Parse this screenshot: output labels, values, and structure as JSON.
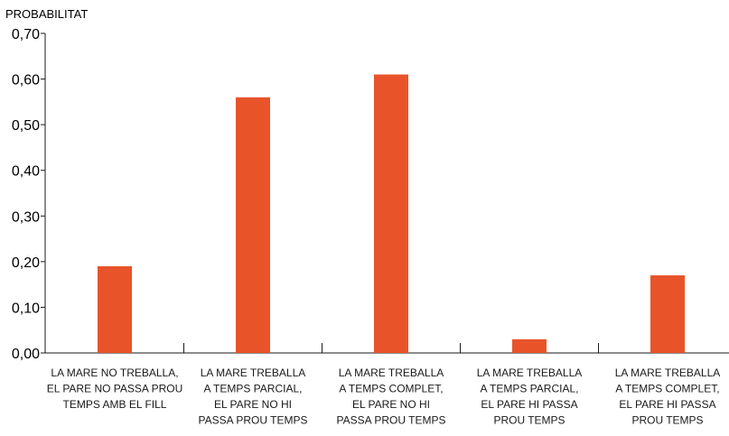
{
  "chart_data": {
    "type": "bar",
    "ylabel": "PROBABILITAT",
    "xlabel": "",
    "title": "",
    "ylim": [
      0,
      0.7
    ],
    "yticks": [
      "0,00",
      "0,10",
      "0,20",
      "0,30",
      "0,40",
      "0,50",
      "0,60",
      "0,70"
    ],
    "grid": false,
    "bar_color": "#e8532a",
    "categories": [
      [
        "LA MARE NO TREBALLA,",
        "EL PARE NO PASSA PROU",
        "TEMPS AMB EL FILL"
      ],
      [
        "LA MARE TREBALLA",
        "A TEMPS PARCIAL,",
        "EL PARE NO HI",
        "PASSA PROU TEMPS"
      ],
      [
        "LA MARE TREBALLA",
        "A TEMPS COMPLET,",
        "EL PARE NO HI",
        "PASSA PROU TEMPS"
      ],
      [
        "LA MARE TREBALLA",
        "A TEMPS PARCIAL,",
        "EL PARE HI PASSA",
        "PROU TEMPS"
      ],
      [
        "LA MARE TREBALLA",
        "A TEMPS COMPLET,",
        "EL PARE HI PASSA",
        "PROU TEMPS"
      ]
    ],
    "values": [
      0.19,
      0.56,
      0.61,
      0.03,
      0.17
    ]
  }
}
